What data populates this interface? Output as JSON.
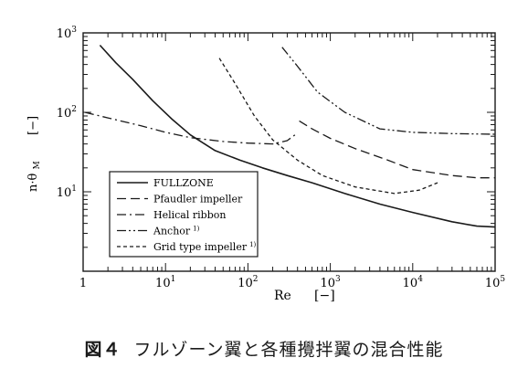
{
  "chart_data": {
    "type": "line",
    "x_scale": "log",
    "y_scale": "log",
    "xlim": [
      1,
      100000
    ],
    "ylim": [
      1,
      1000
    ],
    "x_ticks": [
      {
        "value": 1,
        "label": "1"
      },
      {
        "value": 10,
        "label": "10",
        "sup": "1"
      },
      {
        "value": 100,
        "label": "10",
        "sup": "2"
      },
      {
        "value": 1000,
        "label": "10",
        "sup": "3"
      },
      {
        "value": 10000,
        "label": "10",
        "sup": "4"
      },
      {
        "value": 100000,
        "label": "10",
        "sup": "5"
      }
    ],
    "y_ticks": [
      {
        "value": 10,
        "label": "10",
        "sup": "1"
      },
      {
        "value": 100,
        "label": "10",
        "sup": "2"
      },
      {
        "value": 1000,
        "label": "10",
        "sup": "3"
      }
    ],
    "xlabel": "Re",
    "xlabel_unit": "[−]",
    "ylabel": "n·θ",
    "ylabel_sub": "M",
    "ylabel_unit": "[−]",
    "grid": false,
    "legend_position": "bottom-left",
    "series": [
      {
        "name": "FULLZONE",
        "dash": "solid",
        "points": [
          [
            1.6,
            700
          ],
          [
            2.5,
            420
          ],
          [
            4,
            260
          ],
          [
            7,
            140
          ],
          [
            12,
            82
          ],
          [
            20,
            52
          ],
          [
            40,
            33
          ],
          [
            80,
            25
          ],
          [
            150,
            20
          ],
          [
            300,
            16
          ],
          [
            600,
            13
          ],
          [
            1500,
            9.5
          ],
          [
            4000,
            7
          ],
          [
            10000,
            5.5
          ],
          [
            30000,
            4.2
          ],
          [
            60000,
            3.7
          ],
          [
            100000,
            3.6
          ]
        ]
      },
      {
        "name": "Pfaudler impeller",
        "dash": "long",
        "points": [
          [
            420,
            78
          ],
          [
            600,
            62
          ],
          [
            1000,
            47
          ],
          [
            2000,
            35
          ],
          [
            5000,
            25
          ],
          [
            10000,
            19
          ],
          [
            30000,
            16
          ],
          [
            60000,
            15
          ],
          [
            150000,
            15
          ]
        ]
      },
      {
        "name": "Helical ribbon",
        "dash": "dashdot",
        "points": [
          [
            1.05,
            100
          ],
          [
            2,
            85
          ],
          [
            5,
            68
          ],
          [
            10,
            56
          ],
          [
            20,
            48
          ],
          [
            50,
            43
          ],
          [
            100,
            41
          ],
          [
            200,
            40
          ],
          [
            300,
            44
          ],
          [
            400,
            55
          ]
        ]
      },
      {
        "name": "Anchor",
        "name_sup": "1)",
        "dash": "dashdotdot",
        "points": [
          [
            260,
            660
          ],
          [
            400,
            380
          ],
          [
            700,
            180
          ],
          [
            1500,
            100
          ],
          [
            4000,
            62
          ],
          [
            10000,
            56
          ],
          [
            30000,
            54
          ],
          [
            100000,
            53
          ]
        ]
      },
      {
        "name": "Grid type impeller",
        "name_sup": "1)",
        "dash": "short",
        "points": [
          [
            45,
            480
          ],
          [
            70,
            230
          ],
          [
            120,
            90
          ],
          [
            200,
            45
          ],
          [
            400,
            25
          ],
          [
            800,
            16
          ],
          [
            2000,
            11.5
          ],
          [
            6000,
            9.5
          ],
          [
            12000,
            10.5
          ],
          [
            20000,
            13
          ]
        ]
      }
    ]
  },
  "caption": {
    "figure_label": "図４",
    "text": "フルゾーン翼と各種攪拌翼の混合性能"
  }
}
